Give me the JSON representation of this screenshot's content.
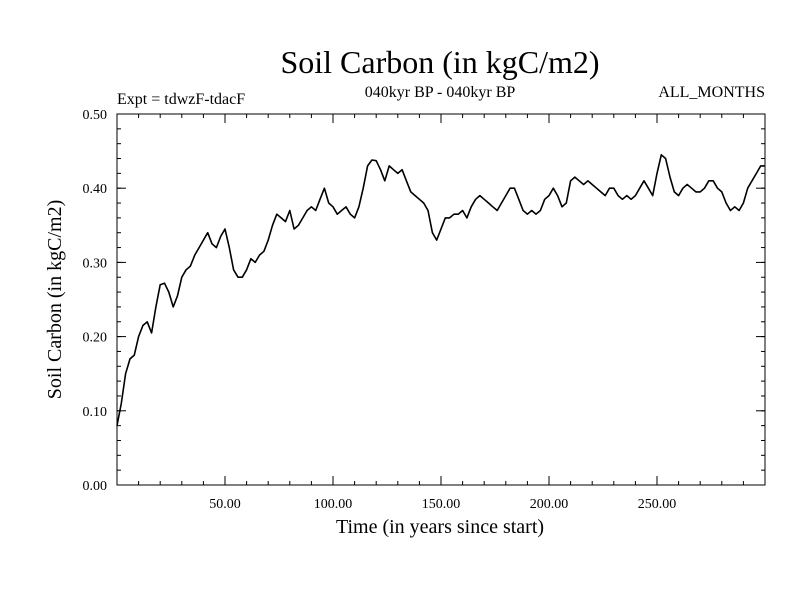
{
  "chart_data": {
    "type": "line",
    "title": "Soil Carbon (in kgC/m2)",
    "subtitle_left": "Expt = tdwzF-tdacF",
    "subtitle_center": "040kyr BP - 040kyr BP",
    "subtitle_right": "ALL_MONTHS",
    "xlabel": "Time (in years since start)",
    "ylabel": "Soil Carbon (in kgC/m2)",
    "xlim": [
      0,
      300
    ],
    "ylim": [
      0.0,
      0.5
    ],
    "xticks": [
      50,
      100,
      150,
      200,
      250
    ],
    "xtick_labels": [
      "50.00",
      "100.00",
      "150.00",
      "200.00",
      "250.00"
    ],
    "yticks": [
      0.0,
      0.1,
      0.2,
      0.3,
      0.4,
      0.5
    ],
    "ytick_labels": [
      "0.00",
      "0.10",
      "0.20",
      "0.30",
      "0.40",
      "0.50"
    ],
    "grid": false,
    "series": [
      {
        "name": "soil_carbon",
        "color": "#000000",
        "points": [
          [
            0,
            0.08
          ],
          [
            2,
            0.11
          ],
          [
            4,
            0.15
          ],
          [
            6,
            0.17
          ],
          [
            8,
            0.175
          ],
          [
            10,
            0.2
          ],
          [
            12,
            0.215
          ],
          [
            14,
            0.22
          ],
          [
            16,
            0.205
          ],
          [
            18,
            0.24
          ],
          [
            20,
            0.27
          ],
          [
            22,
            0.272
          ],
          [
            24,
            0.26
          ],
          [
            26,
            0.24
          ],
          [
            28,
            0.255
          ],
          [
            30,
            0.28
          ],
          [
            32,
            0.29
          ],
          [
            34,
            0.295
          ],
          [
            36,
            0.31
          ],
          [
            38,
            0.32
          ],
          [
            40,
            0.33
          ],
          [
            42,
            0.34
          ],
          [
            44,
            0.325
          ],
          [
            46,
            0.32
          ],
          [
            48,
            0.335
          ],
          [
            50,
            0.345
          ],
          [
            52,
            0.32
          ],
          [
            54,
            0.29
          ],
          [
            56,
            0.28
          ],
          [
            58,
            0.28
          ],
          [
            60,
            0.29
          ],
          [
            62,
            0.305
          ],
          [
            64,
            0.3
          ],
          [
            66,
            0.31
          ],
          [
            68,
            0.315
          ],
          [
            70,
            0.33
          ],
          [
            72,
            0.35
          ],
          [
            74,
            0.365
          ],
          [
            76,
            0.36
          ],
          [
            78,
            0.355
          ],
          [
            80,
            0.37
          ],
          [
            82,
            0.345
          ],
          [
            84,
            0.35
          ],
          [
            86,
            0.36
          ],
          [
            88,
            0.37
          ],
          [
            90,
            0.375
          ],
          [
            92,
            0.37
          ],
          [
            94,
            0.385
          ],
          [
            96,
            0.4
          ],
          [
            98,
            0.38
          ],
          [
            100,
            0.375
          ],
          [
            102,
            0.365
          ],
          [
            104,
            0.37
          ],
          [
            106,
            0.375
          ],
          [
            108,
            0.365
          ],
          [
            110,
            0.36
          ],
          [
            112,
            0.375
          ],
          [
            114,
            0.4
          ],
          [
            116,
            0.43
          ],
          [
            118,
            0.438
          ],
          [
            120,
            0.437
          ],
          [
            122,
            0.425
          ],
          [
            124,
            0.41
          ],
          [
            126,
            0.43
          ],
          [
            128,
            0.425
          ],
          [
            130,
            0.42
          ],
          [
            132,
            0.425
          ],
          [
            134,
            0.41
          ],
          [
            136,
            0.395
          ],
          [
            138,
            0.39
          ],
          [
            140,
            0.385
          ],
          [
            142,
            0.38
          ],
          [
            144,
            0.37
          ],
          [
            146,
            0.34
          ],
          [
            148,
            0.33
          ],
          [
            150,
            0.345
          ],
          [
            152,
            0.36
          ],
          [
            154,
            0.36
          ],
          [
            156,
            0.365
          ],
          [
            158,
            0.365
          ],
          [
            160,
            0.37
          ],
          [
            162,
            0.36
          ],
          [
            164,
            0.375
          ],
          [
            166,
            0.385
          ],
          [
            168,
            0.39
          ],
          [
            170,
            0.385
          ],
          [
            172,
            0.38
          ],
          [
            174,
            0.375
          ],
          [
            176,
            0.37
          ],
          [
            178,
            0.38
          ],
          [
            180,
            0.39
          ],
          [
            182,
            0.4
          ],
          [
            184,
            0.4
          ],
          [
            186,
            0.385
          ],
          [
            188,
            0.37
          ],
          [
            190,
            0.365
          ],
          [
            192,
            0.37
          ],
          [
            194,
            0.365
          ],
          [
            196,
            0.37
          ],
          [
            198,
            0.385
          ],
          [
            200,
            0.39
          ],
          [
            202,
            0.4
          ],
          [
            204,
            0.39
          ],
          [
            206,
            0.375
          ],
          [
            208,
            0.38
          ],
          [
            210,
            0.41
          ],
          [
            212,
            0.415
          ],
          [
            214,
            0.41
          ],
          [
            216,
            0.405
          ],
          [
            218,
            0.41
          ],
          [
            220,
            0.405
          ],
          [
            222,
            0.4
          ],
          [
            224,
            0.395
          ],
          [
            226,
            0.39
          ],
          [
            228,
            0.4
          ],
          [
            230,
            0.4
          ],
          [
            232,
            0.39
          ],
          [
            234,
            0.385
          ],
          [
            236,
            0.39
          ],
          [
            238,
            0.385
          ],
          [
            240,
            0.39
          ],
          [
            242,
            0.4
          ],
          [
            244,
            0.41
          ],
          [
            246,
            0.4
          ],
          [
            248,
            0.39
          ],
          [
            250,
            0.42
          ],
          [
            252,
            0.445
          ],
          [
            254,
            0.44
          ],
          [
            256,
            0.415
          ],
          [
            258,
            0.395
          ],
          [
            260,
            0.39
          ],
          [
            262,
            0.4
          ],
          [
            264,
            0.405
          ],
          [
            266,
            0.4
          ],
          [
            268,
            0.395
          ],
          [
            270,
            0.395
          ],
          [
            272,
            0.4
          ],
          [
            274,
            0.41
          ],
          [
            276,
            0.41
          ],
          [
            278,
            0.4
          ],
          [
            280,
            0.395
          ],
          [
            282,
            0.38
          ],
          [
            284,
            0.37
          ],
          [
            286,
            0.375
          ],
          [
            288,
            0.37
          ],
          [
            290,
            0.38
          ],
          [
            292,
            0.4
          ],
          [
            294,
            0.41
          ],
          [
            296,
            0.42
          ],
          [
            298,
            0.43
          ],
          [
            300,
            0.43
          ]
        ]
      }
    ]
  }
}
